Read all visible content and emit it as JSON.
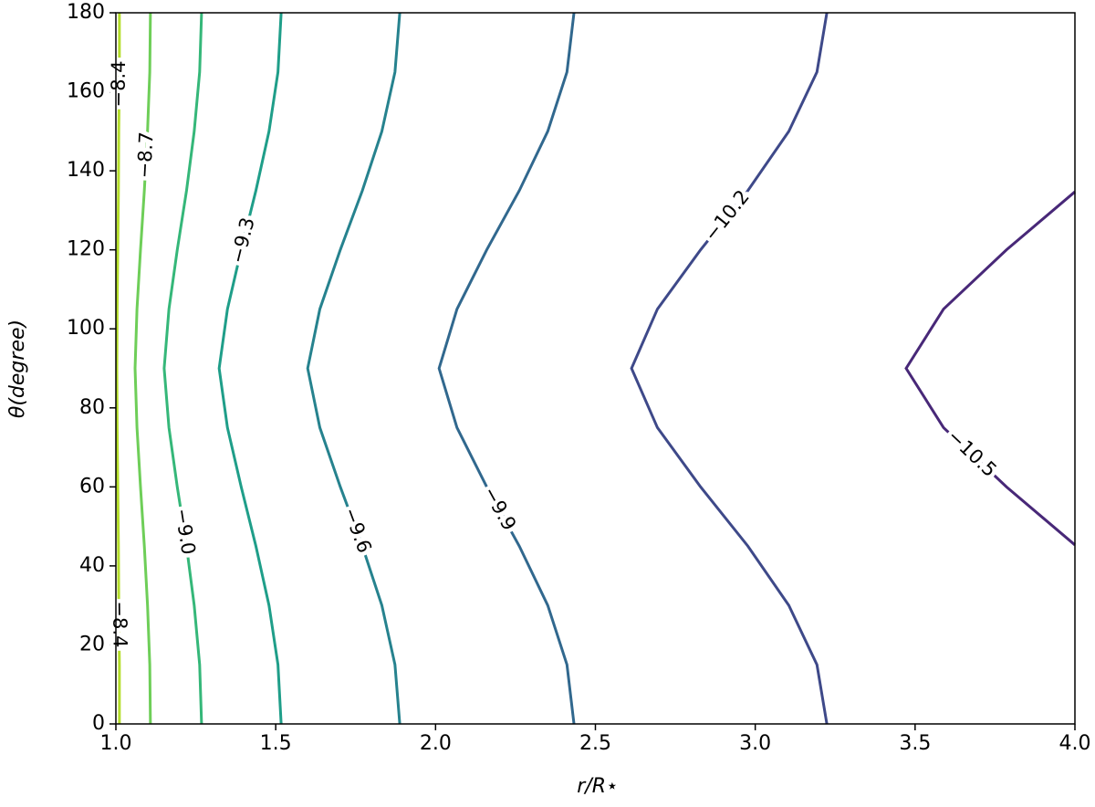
{
  "chart_data": {
    "type": "contour",
    "xlabel": "r/R⋆",
    "ylabel": "θ(degree)",
    "xlim": [
      1,
      4
    ],
    "ylim": [
      0,
      180
    ],
    "xticks": [
      {
        "value": 1,
        "label": "1.0"
      },
      {
        "value": 1.5,
        "label": "1.5"
      },
      {
        "value": 2,
        "label": "2.0"
      },
      {
        "value": 2.5,
        "label": "2.5"
      },
      {
        "value": 3,
        "label": "3.0"
      },
      {
        "value": 3.5,
        "label": "3.5"
      },
      {
        "value": 4,
        "label": "4.0"
      }
    ],
    "yticks": [
      0,
      20,
      40,
      60,
      80,
      100,
      120,
      140,
      160,
      180
    ],
    "contours": [
      {
        "label": "−8.4",
        "color": "#b5de2b",
        "x": [
          1.011,
          1.011,
          1.009,
          1.008,
          1.006,
          1.004,
          1.003,
          1.004,
          1.006,
          1.008,
          1.009,
          1.011,
          1.011
        ],
        "y": [
          0,
          15,
          30,
          45,
          60,
          75,
          90,
          105,
          120,
          135,
          150,
          165,
          180
        ]
      },
      {
        "label": "−8.7",
        "color": "#6ece58",
        "x": [
          1.108,
          1.106,
          1.099,
          1.089,
          1.077,
          1.066,
          1.06,
          1.066,
          1.077,
          1.089,
          1.099,
          1.106,
          1.108
        ],
        "y": [
          0,
          15,
          30,
          45,
          60,
          75,
          90,
          105,
          120,
          135,
          150,
          165,
          180
        ]
      },
      {
        "label": "−9.0",
        "color": "#35b779",
        "x": [
          1.268,
          1.262,
          1.245,
          1.221,
          1.192,
          1.166,
          1.151,
          1.166,
          1.192,
          1.221,
          1.245,
          1.262,
          1.268
        ],
        "y": [
          0,
          15,
          30,
          45,
          60,
          75,
          90,
          105,
          120,
          135,
          150,
          165,
          180
        ]
      },
      {
        "label": "−9.3",
        "color": "#1f9e89",
        "x": [
          1.517,
          1.507,
          1.479,
          1.438,
          1.392,
          1.349,
          1.323,
          1.349,
          1.392,
          1.438,
          1.479,
          1.507,
          1.517
        ],
        "y": [
          0,
          15,
          30,
          45,
          60,
          75,
          90,
          105,
          120,
          135,
          150,
          165,
          180
        ]
      },
      {
        "label": "−9.6",
        "color": "#26828e",
        "x": [
          1.888,
          1.873,
          1.832,
          1.771,
          1.702,
          1.638,
          1.6,
          1.638,
          1.702,
          1.771,
          1.832,
          1.873,
          1.888
        ],
        "y": [
          0,
          15,
          30,
          45,
          60,
          75,
          90,
          105,
          120,
          135,
          150,
          165,
          180
        ]
      },
      {
        "label": "−9.9",
        "color": "#31688e",
        "x": [
          2.433,
          2.411,
          2.351,
          2.262,
          2.16,
          2.067,
          2.011,
          2.067,
          2.16,
          2.262,
          2.351,
          2.411,
          2.433
        ],
        "y": [
          0,
          15,
          30,
          45,
          60,
          75,
          90,
          105,
          120,
          135,
          150,
          165,
          180
        ]
      },
      {
        "label": "−10.2",
        "color": "#3e4989",
        "x": [
          3.224,
          3.193,
          3.105,
          2.977,
          2.829,
          2.694,
          2.613,
          2.694,
          2.829,
          2.977,
          3.105,
          3.193,
          3.224
        ],
        "y": [
          0,
          15,
          30,
          45,
          60,
          75,
          90,
          105,
          120,
          135,
          150,
          165,
          180
        ]
      },
      {
        "label": "−10.5",
        "color": "#482878",
        "x": [
          4.0,
          3.786,
          3.589,
          3.472,
          3.589,
          3.786,
          4.0
        ],
        "y": [
          45.3,
          60,
          75,
          90,
          105,
          120,
          134.7
        ]
      }
    ]
  }
}
